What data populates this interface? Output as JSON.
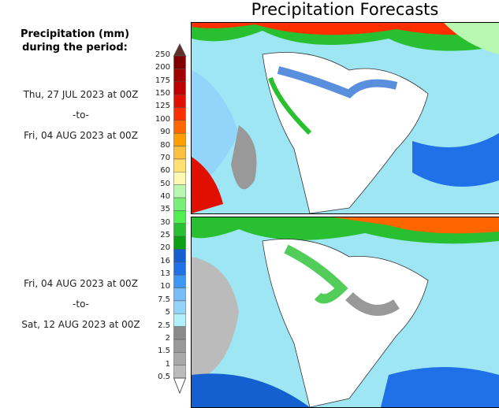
{
  "title": "Precipitation Forecasts",
  "legend": {
    "title_line1": "Precipitation (mm)",
    "title_line2": "during the period:",
    "levels": [
      "0.5",
      "1",
      "1.5",
      "2",
      "2.5",
      "5",
      "7.5",
      "10",
      "13",
      "16",
      "20",
      "25",
      "30",
      "35",
      "40",
      "50",
      "60",
      "70",
      "80",
      "90",
      "100",
      "125",
      "150",
      "175",
      "200",
      "250"
    ],
    "colors": [
      "#bbbbbb",
      "#a8a8a8",
      "#999999",
      "#8a8a8a",
      "#b0f0f8",
      "#92d4fa",
      "#78bcf8",
      "#3c98f4",
      "#2070e8",
      "#1460d0",
      "#0aa010",
      "#28c030",
      "#50f050",
      "#78f078",
      "#b8f8b0",
      "#fff8b0",
      "#ffe070",
      "#ffc040",
      "#ffa000",
      "#ff6600",
      "#ff3000",
      "#e01000",
      "#c00000",
      "#a00000",
      "#800000"
    ],
    "over_color": "#603028"
  },
  "periods": [
    {
      "start": "Thu, 27 JUL 2023 at 00Z",
      "sep": "-to-",
      "end": "Fri, 04 AUG 2023 at 00Z"
    },
    {
      "start": "Fri, 04 AUG 2023 at 00Z",
      "sep": "-to-",
      "end": "Sat, 12 AUG 2023 at 00Z"
    }
  ]
}
